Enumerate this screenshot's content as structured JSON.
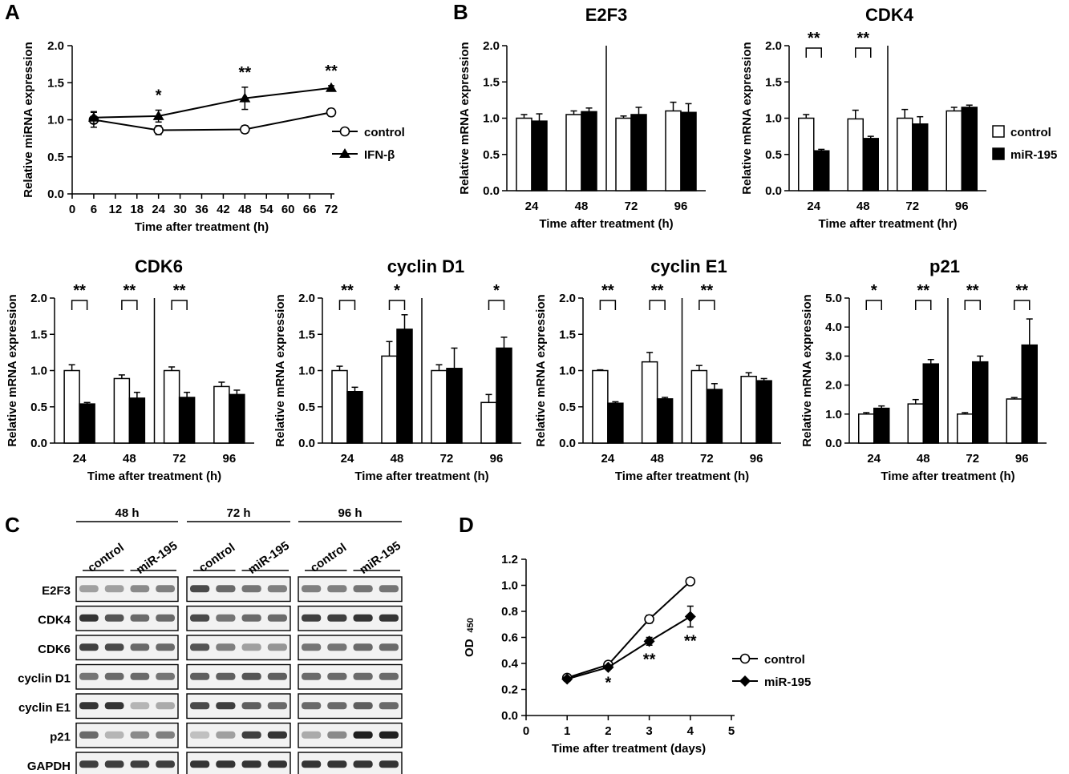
{
  "panels": {
    "A": {
      "letter": "A",
      "chart_data": {
        "type": "line",
        "xlabel": "Time after treatment (h)",
        "ylabel": "Relative miRNA expression",
        "xlim": [
          0,
          72
        ],
        "ylim": [
          0,
          2.0
        ],
        "xticks": [
          "0",
          "6",
          "12",
          "18",
          "24",
          "30",
          "36",
          "42",
          "48",
          "54",
          "60",
          "66",
          "72"
        ],
        "yticks": [
          "0.0",
          "0.5",
          "1.0",
          "1.5",
          "2.0"
        ],
        "x": [
          6,
          24,
          48,
          72
        ],
        "series": [
          {
            "name": "control",
            "values": [
              1.0,
              0.86,
              0.87,
              1.1
            ],
            "errors": [
              0.1,
              0.06,
              0.05,
              0.05
            ],
            "marker": "circle"
          },
          {
            "name": "IFN-β",
            "values": [
              1.03,
              1.05,
              1.29,
              1.43
            ],
            "errors": [
              0.08,
              0.08,
              0.15,
              0.03
            ],
            "marker": "triangle"
          }
        ],
        "significance": [
          "",
          "*",
          "**",
          "**"
        ],
        "legend": "right"
      }
    },
    "B": {
      "letter": "B",
      "legend": {
        "control": "control",
        "treated": "miR-195"
      },
      "charts": [
        {
          "title": "E2F3",
          "type": "bar",
          "xlabel": "Time after treatment (h)",
          "ylabel": "Relative mRNA expression",
          "categories": [
            "24",
            "48",
            "72",
            "96"
          ],
          "ylim": [
            0,
            2.0
          ],
          "yticks": [
            "0.0",
            "0.5",
            "1.0",
            "1.5",
            "2.0"
          ],
          "series": [
            {
              "name": "control",
              "values": [
                1.0,
                1.05,
                1.0,
                1.1
              ],
              "errors": [
                0.05,
                0.05,
                0.03,
                0.12
              ]
            },
            {
              "name": "miR-195",
              "values": [
                0.96,
                1.09,
                1.05,
                1.08
              ],
              "errors": [
                0.1,
                0.05,
                0.1,
                0.12
              ]
            }
          ],
          "significance": [
            "",
            "",
            "",
            ""
          ],
          "break_after": 2
        },
        {
          "title": "CDK4",
          "type": "bar",
          "xlabel": "Time after treatment (hr)",
          "ylabel": "Relative mRNA expression",
          "categories": [
            "24",
            "48",
            "72",
            "96"
          ],
          "ylim": [
            0,
            2.0
          ],
          "yticks": [
            "0.0",
            "0.5",
            "1.0",
            "1.5",
            "2.0"
          ],
          "series": [
            {
              "name": "control",
              "values": [
                1.0,
                0.99,
                1.0,
                1.1
              ],
              "errors": [
                0.05,
                0.12,
                0.12,
                0.05
              ]
            },
            {
              "name": "miR-195",
              "values": [
                0.55,
                0.72,
                0.92,
                1.15
              ],
              "errors": [
                0.02,
                0.03,
                0.1,
                0.03
              ]
            }
          ],
          "significance": [
            "**",
            "**",
            "",
            ""
          ],
          "break_after": 2
        }
      ]
    },
    "row2": {
      "charts": [
        {
          "title": "CDK6",
          "type": "bar",
          "xlabel": "Time after treatment (h)",
          "ylabel": "Relative mRNA expression",
          "categories": [
            "24",
            "48",
            "72",
            "96"
          ],
          "ylim": [
            0,
            2.0
          ],
          "yticks": [
            "0.0",
            "0.5",
            "1.0",
            "1.5",
            "2.0"
          ],
          "series": [
            {
              "name": "control",
              "values": [
                1.0,
                0.89,
                1.0,
                0.78
              ],
              "errors": [
                0.08,
                0.05,
                0.05,
                0.06
              ]
            },
            {
              "name": "miR-195",
              "values": [
                0.54,
                0.62,
                0.63,
                0.67
              ],
              "errors": [
                0.02,
                0.08,
                0.07,
                0.06
              ]
            }
          ],
          "significance": [
            "**",
            "**",
            "**",
            ""
          ],
          "break_after": 2
        },
        {
          "title": "cyclin D1",
          "type": "bar",
          "xlabel": "Time after treatment (h)",
          "ylabel": "Relative mRNA expression",
          "categories": [
            "24",
            "48",
            "72",
            "96"
          ],
          "ylim": [
            0,
            2.0
          ],
          "yticks": [
            "0.0",
            "0.5",
            "1.0",
            "1.5",
            "2.0"
          ],
          "series": [
            {
              "name": "control",
              "values": [
                1.0,
                1.2,
                1.0,
                0.56
              ],
              "errors": [
                0.06,
                0.2,
                0.08,
                0.11
              ]
            },
            {
              "name": "miR-195",
              "values": [
                0.71,
                1.57,
                1.03,
                1.31
              ],
              "errors": [
                0.06,
                0.2,
                0.28,
                0.15
              ]
            }
          ],
          "significance": [
            "**",
            "*",
            "",
            "*"
          ],
          "break_after": 2
        },
        {
          "title": "cyclin E1",
          "type": "bar",
          "xlabel": "Time after treatment (h)",
          "ylabel": "Relative mRNA expression",
          "categories": [
            "24",
            "48",
            "72",
            "96"
          ],
          "ylim": [
            0,
            2.0
          ],
          "yticks": [
            "0.0",
            "0.5",
            "1.0",
            "1.5",
            "2.0"
          ],
          "series": [
            {
              "name": "control",
              "values": [
                1.0,
                1.12,
                1.0,
                0.92
              ],
              "errors": [
                0.01,
                0.13,
                0.07,
                0.05
              ]
            },
            {
              "name": "miR-195",
              "values": [
                0.55,
                0.61,
                0.74,
                0.86
              ],
              "errors": [
                0.02,
                0.02,
                0.08,
                0.03
              ]
            }
          ],
          "significance": [
            "**",
            "**",
            "**",
            ""
          ],
          "break_after": 2
        },
        {
          "title": "p21",
          "type": "bar",
          "xlabel": "Time after treatment (h)",
          "ylabel": "Relative mRNA expression",
          "categories": [
            "24",
            "48",
            "72",
            "96"
          ],
          "ylim": [
            0,
            5.0
          ],
          "yticks": [
            "0.0",
            "1.0",
            "2.0",
            "3.0",
            "4.0",
            "5.0"
          ],
          "series": [
            {
              "name": "control",
              "values": [
                1.0,
                1.35,
                1.0,
                1.52
              ],
              "errors": [
                0.05,
                0.15,
                0.05,
                0.05
              ]
            },
            {
              "name": "miR-195",
              "values": [
                1.2,
                2.73,
                2.8,
                3.38
              ],
              "errors": [
                0.08,
                0.15,
                0.2,
                0.9
              ]
            }
          ],
          "significance": [
            "*",
            "**",
            "**",
            "**"
          ],
          "break_after": 2
        }
      ]
    },
    "C": {
      "letter": "C",
      "timepoints": [
        "48 h",
        "72 h",
        "96 h"
      ],
      "conditions": [
        "control",
        "miR-195"
      ],
      "proteins": [
        "E2F3",
        "CDK4",
        "CDK6",
        "cyclin D1",
        "cyclin E1",
        "p21",
        "GAPDH"
      ]
    },
    "D": {
      "letter": "D",
      "chart_data": {
        "type": "line",
        "xlabel": "Time after treatment (days)",
        "ylabel": "OD",
        "ylabel_sub": "450",
        "xlim": [
          0,
          5
        ],
        "ylim": [
          0,
          1.2
        ],
        "xticks": [
          "0",
          "1",
          "2",
          "3",
          "4",
          "5"
        ],
        "yticks": [
          "0.0",
          "0.2",
          "0.4",
          "0.6",
          "0.8",
          "1.0",
          "1.2"
        ],
        "x": [
          1,
          2,
          3,
          4
        ],
        "series": [
          {
            "name": "control",
            "values": [
              0.29,
              0.39,
              0.74,
              1.03
            ],
            "errors": [
              0.01,
              0.01,
              0.03,
              0.01
            ],
            "marker": "circle"
          },
          {
            "name": "miR-195",
            "values": [
              0.28,
              0.37,
              0.57,
              0.76
            ],
            "errors": [
              0.01,
              0.01,
              0.03,
              0.08
            ],
            "marker": "diamond"
          }
        ],
        "significance": [
          "",
          "*",
          "**",
          "**"
        ],
        "legend": "right"
      }
    }
  }
}
